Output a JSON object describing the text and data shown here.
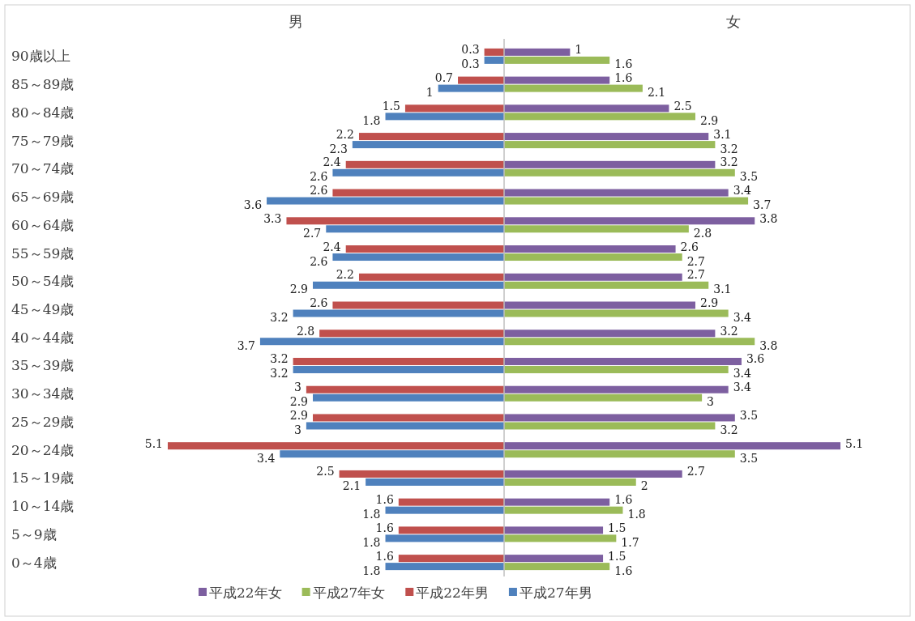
{
  "chart_data": [
    {
      "type": "bar",
      "orientation": "horizontal",
      "title": "男",
      "tick_labels": "y",
      "data_labels": true,
      "legend": "bottom",
      "categories": [
        "90歳以上",
        "85～89歳",
        "80～84歳",
        "75～79歳",
        "70～74歳",
        "65～69歳",
        "60～64歳",
        "55～59歳",
        "50～54歳",
        "45～49歳",
        "40～44歳",
        "35～39歳",
        "30～34歳",
        "25～29歳",
        "20～24歳",
        "15～19歳",
        "10～14歳",
        "5～9歳",
        "0～4歳"
      ],
      "series": [
        {
          "name": "平成22年男",
          "color": "#c0504d",
          "values": [
            0.3,
            0.7,
            1.5,
            2.2,
            2.4,
            2.6,
            3.3,
            2.4,
            2.2,
            2.6,
            2.8,
            3.2,
            3,
            2.9,
            5.1,
            2.5,
            1.6,
            1.6,
            1.6
          ]
        },
        {
          "name": "平成27年男",
          "color": "#4f81bd",
          "values": [
            0.3,
            1,
            1.8,
            2.3,
            2.6,
            3.6,
            2.7,
            2.6,
            2.9,
            3.2,
            3.7,
            3.2,
            2.9,
            3,
            3.4,
            2.1,
            1.8,
            1.8,
            1.8
          ]
        }
      ]
    },
    {
      "type": "bar",
      "orientation": "horizontal",
      "title": "女",
      "tick_labels": false,
      "data_labels": true,
      "legend": "bottom",
      "categories": [
        null,
        null,
        null,
        null,
        null,
        null,
        null,
        null,
        null,
        null,
        null,
        null,
        null,
        null,
        null,
        null,
        null,
        null,
        null
      ],
      "series": [
        {
          "name": "平成22年女",
          "color": "#7d5fa0",
          "values": [
            1,
            1.6,
            2.5,
            3.1,
            3.2,
            3.4,
            3.8,
            2.6,
            2.7,
            2.9,
            3.2,
            3.6,
            3.4,
            3.5,
            5.1,
            2.7,
            1.6,
            1.5,
            1.5
          ]
        },
        {
          "name": "平成27年女",
          "color": "#9bbb59",
          "values": [
            1.6,
            2.1,
            2.9,
            3.2,
            3.5,
            3.7,
            2.8,
            2.7,
            3.1,
            3.4,
            3.8,
            3.4,
            3,
            3.2,
            3.5,
            2,
            1.8,
            1.7,
            1.6
          ]
        }
      ]
    }
  ]
}
